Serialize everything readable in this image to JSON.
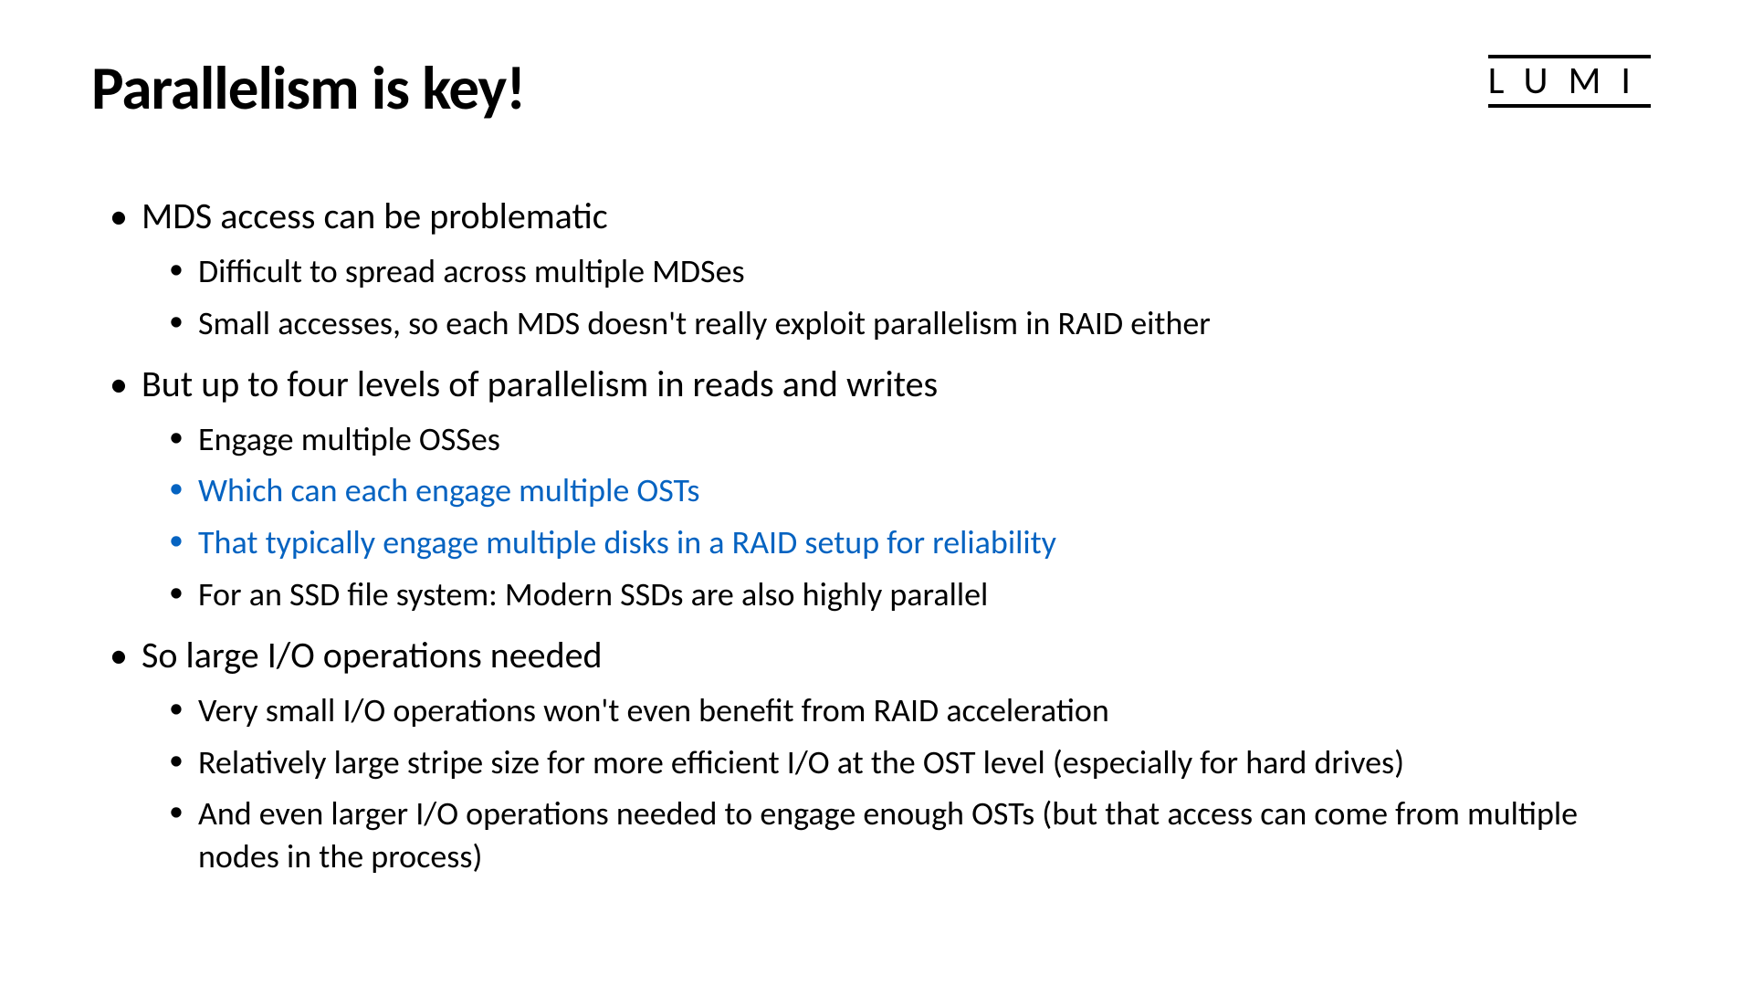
{
  "title": "Parallelism is key!",
  "logo": "LUMI",
  "bullets": {
    "b1": "MDS access can be problematic",
    "b1_1": "Difficult to spread across multiple MDSes",
    "b1_2": "Small accesses, so each MDS doesn't really exploit parallelism in RAID either",
    "b2": "But up to four levels of parallelism in reads and writes",
    "b2_1": "Engage multiple OSSes",
    "b2_2": "Which can each engage multiple OSTs",
    "b2_3": "That typically engage multiple disks in a RAID setup for reliability",
    "b2_4": "For an SSD file system: Modern SSDs are also highly parallel",
    "b3": "So large I/O operations needed",
    "b3_1": "Very small I/O operations won't even benefit from RAID acceleration",
    "b3_2": "Relatively large stripe size for more efficient I/O at the OST level (especially for hard drives)",
    "b3_3": "And even larger I/O operations needed to engage enough OSTs (but that access can come from multiple nodes in the process)"
  },
  "colors": {
    "text": "#000000",
    "highlight": "#0563c1",
    "background": "#ffffff"
  },
  "typography": {
    "title_fontsize": 67,
    "title_weight": 700,
    "l1_fontsize": 40,
    "l2_fontsize": 36,
    "logo_fontsize": 42,
    "logo_letterspacing": 22
  }
}
